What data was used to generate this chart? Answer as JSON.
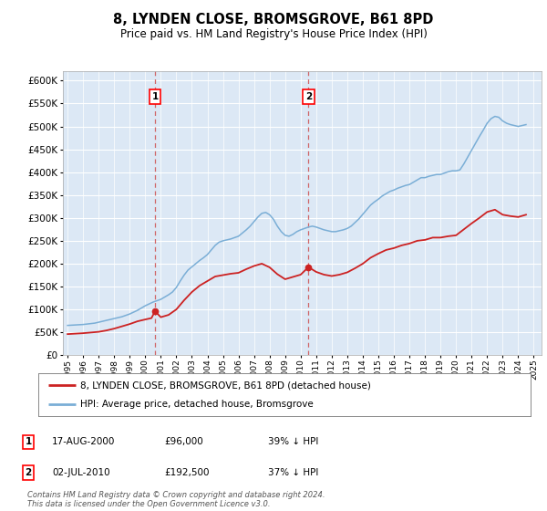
{
  "title": "8, LYNDEN CLOSE, BROMSGROVE, B61 8PD",
  "subtitle": "Price paid vs. HM Land Registry's House Price Index (HPI)",
  "ylim": [
    0,
    620000
  ],
  "yticks": [
    0,
    50000,
    100000,
    150000,
    200000,
    250000,
    300000,
    350000,
    400000,
    450000,
    500000,
    550000,
    600000
  ],
  "xlim_start": 1994.7,
  "xlim_end": 2025.5,
  "plot_bg_color": "#dce8f5",
  "grid_color": "#ffffff",
  "hpi_line_color": "#7aaed6",
  "price_line_color": "#cc2222",
  "purchase1_year": 2000.625,
  "purchase1_price": 96000,
  "purchase2_year": 2010.5,
  "purchase2_price": 192500,
  "legend_label_red": "8, LYNDEN CLOSE, BROMSGROVE, B61 8PD (detached house)",
  "legend_label_blue": "HPI: Average price, detached house, Bromsgrove",
  "table_rows": [
    {
      "num": "1",
      "date": "17-AUG-2000",
      "price": "£96,000",
      "pct": "39% ↓ HPI"
    },
    {
      "num": "2",
      "date": "02-JUL-2010",
      "price": "£192,500",
      "pct": "37% ↓ HPI"
    }
  ],
  "footer_text": "Contains HM Land Registry data © Crown copyright and database right 2024.\nThis data is licensed under the Open Government Licence v3.0.",
  "hpi_data": [
    [
      1995,
      65000
    ],
    [
      1995.25,
      65500
    ],
    [
      1995.5,
      66000
    ],
    [
      1995.75,
      66500
    ],
    [
      1996,
      67000
    ],
    [
      1996.25,
      68000
    ],
    [
      1996.5,
      69000
    ],
    [
      1996.75,
      70000
    ],
    [
      1997,
      72000
    ],
    [
      1997.25,
      74000
    ],
    [
      1997.5,
      76000
    ],
    [
      1997.75,
      78000
    ],
    [
      1998,
      80000
    ],
    [
      1998.25,
      82000
    ],
    [
      1998.5,
      84000
    ],
    [
      1998.75,
      87000
    ],
    [
      1999,
      90000
    ],
    [
      1999.25,
      94000
    ],
    [
      1999.5,
      98000
    ],
    [
      1999.75,
      103000
    ],
    [
      2000,
      108000
    ],
    [
      2000.25,
      112000
    ],
    [
      2000.5,
      116000
    ],
    [
      2000.75,
      119000
    ],
    [
      2001,
      122000
    ],
    [
      2001.25,
      127000
    ],
    [
      2001.5,
      132000
    ],
    [
      2001.75,
      138000
    ],
    [
      2002,
      148000
    ],
    [
      2002.25,
      162000
    ],
    [
      2002.5,
      175000
    ],
    [
      2002.75,
      186000
    ],
    [
      2003,
      193000
    ],
    [
      2003.25,
      200000
    ],
    [
      2003.5,
      207000
    ],
    [
      2003.75,
      213000
    ],
    [
      2004,
      220000
    ],
    [
      2004.25,
      230000
    ],
    [
      2004.5,
      240000
    ],
    [
      2004.75,
      247000
    ],
    [
      2005,
      250000
    ],
    [
      2005.25,
      252000
    ],
    [
      2005.5,
      254000
    ],
    [
      2005.75,
      257000
    ],
    [
      2006,
      260000
    ],
    [
      2006.25,
      267000
    ],
    [
      2006.5,
      274000
    ],
    [
      2006.75,
      282000
    ],
    [
      2007,
      292000
    ],
    [
      2007.25,
      302000
    ],
    [
      2007.5,
      310000
    ],
    [
      2007.75,
      312000
    ],
    [
      2008,
      307000
    ],
    [
      2008.25,
      297000
    ],
    [
      2008.5,
      282000
    ],
    [
      2008.75,
      270000
    ],
    [
      2009,
      262000
    ],
    [
      2009.25,
      260000
    ],
    [
      2009.5,
      264000
    ],
    [
      2009.75,
      270000
    ],
    [
      2010,
      274000
    ],
    [
      2010.25,
      277000
    ],
    [
      2010.5,
      280000
    ],
    [
      2010.75,
      282000
    ],
    [
      2011,
      280000
    ],
    [
      2011.25,
      277000
    ],
    [
      2011.5,
      274000
    ],
    [
      2011.75,
      272000
    ],
    [
      2012,
      270000
    ],
    [
      2012.25,
      270000
    ],
    [
      2012.5,
      272000
    ],
    [
      2012.75,
      274000
    ],
    [
      2013,
      277000
    ],
    [
      2013.25,
      282000
    ],
    [
      2013.5,
      290000
    ],
    [
      2013.75,
      298000
    ],
    [
      2014,
      308000
    ],
    [
      2014.25,
      318000
    ],
    [
      2014.5,
      328000
    ],
    [
      2014.75,
      335000
    ],
    [
      2015,
      341000
    ],
    [
      2015.25,
      348000
    ],
    [
      2015.5,
      353000
    ],
    [
      2015.75,
      358000
    ],
    [
      2016,
      361000
    ],
    [
      2016.25,
      365000
    ],
    [
      2016.5,
      368000
    ],
    [
      2016.75,
      371000
    ],
    [
      2017,
      373000
    ],
    [
      2017.25,
      378000
    ],
    [
      2017.5,
      383000
    ],
    [
      2017.75,
      388000
    ],
    [
      2018,
      388000
    ],
    [
      2018.25,
      391000
    ],
    [
      2018.5,
      393000
    ],
    [
      2018.75,
      395000
    ],
    [
      2019,
      395000
    ],
    [
      2019.25,
      398000
    ],
    [
      2019.5,
      401000
    ],
    [
      2019.75,
      403000
    ],
    [
      2020,
      403000
    ],
    [
      2020.25,
      405000
    ],
    [
      2020.5,
      418000
    ],
    [
      2020.75,
      433000
    ],
    [
      2021,
      448000
    ],
    [
      2021.25,
      463000
    ],
    [
      2021.5,
      478000
    ],
    [
      2021.75,
      492000
    ],
    [
      2022,
      507000
    ],
    [
      2022.25,
      517000
    ],
    [
      2022.5,
      522000
    ],
    [
      2022.75,
      520000
    ],
    [
      2023,
      512000
    ],
    [
      2023.25,
      507000
    ],
    [
      2023.5,
      504000
    ],
    [
      2023.75,
      502000
    ],
    [
      2024,
      500000
    ],
    [
      2024.25,
      502000
    ],
    [
      2024.5,
      504000
    ]
  ],
  "price_data": [
    [
      1995,
      46000
    ],
    [
      1995.5,
      47000
    ],
    [
      1996,
      48000
    ],
    [
      1996.5,
      49500
    ],
    [
      1997,
      51000
    ],
    [
      1997.5,
      54000
    ],
    [
      1998,
      58000
    ],
    [
      1998.5,
      63000
    ],
    [
      1999,
      68000
    ],
    [
      1999.5,
      74000
    ],
    [
      2000,
      78000
    ],
    [
      2000.4,
      81000
    ],
    [
      2000.625,
      96000
    ],
    [
      2001,
      83000
    ],
    [
      2001.5,
      88000
    ],
    [
      2002,
      100000
    ],
    [
      2002.5,
      120000
    ],
    [
      2003,
      138000
    ],
    [
      2003.5,
      152000
    ],
    [
      2004,
      162000
    ],
    [
      2004.5,
      172000
    ],
    [
      2005,
      175000
    ],
    [
      2005.5,
      178000
    ],
    [
      2006,
      180000
    ],
    [
      2006.5,
      188000
    ],
    [
      2007,
      195000
    ],
    [
      2007.5,
      200000
    ],
    [
      2008,
      192000
    ],
    [
      2008.5,
      177000
    ],
    [
      2009,
      166000
    ],
    [
      2009.5,
      171000
    ],
    [
      2010,
      176000
    ],
    [
      2010.5,
      192500
    ],
    [
      2011,
      182000
    ],
    [
      2011.5,
      176000
    ],
    [
      2012,
      173000
    ],
    [
      2012.5,
      176000
    ],
    [
      2013,
      181000
    ],
    [
      2013.5,
      190000
    ],
    [
      2014,
      200000
    ],
    [
      2014.5,
      213000
    ],
    [
      2015,
      222000
    ],
    [
      2015.5,
      230000
    ],
    [
      2016,
      234000
    ],
    [
      2016.5,
      240000
    ],
    [
      2017,
      244000
    ],
    [
      2017.5,
      250000
    ],
    [
      2018,
      252000
    ],
    [
      2018.5,
      257000
    ],
    [
      2019,
      257000
    ],
    [
      2019.5,
      260000
    ],
    [
      2020,
      262000
    ],
    [
      2020.5,
      275000
    ],
    [
      2021,
      288000
    ],
    [
      2021.5,
      300000
    ],
    [
      2022,
      313000
    ],
    [
      2022.5,
      318000
    ],
    [
      2023,
      307000
    ],
    [
      2023.5,
      304000
    ],
    [
      2024,
      302000
    ],
    [
      2024.5,
      307000
    ]
  ]
}
